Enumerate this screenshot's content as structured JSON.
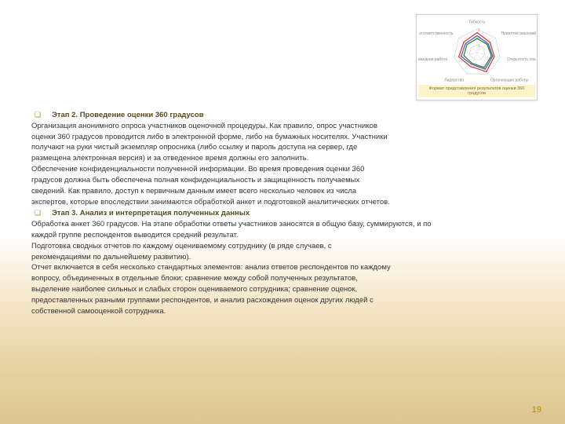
{
  "chart": {
    "caption": "Формат представления результатов оценки 360 градусов",
    "labels": {
      "top": "Гибкость",
      "topRight": "Принятие решений",
      "right": "Открытость опыту",
      "bottomRight": "Организация работы",
      "bottom": "Лидерство",
      "bottomLeft": "Командная работа",
      "left": "Аналитика и ответственность"
    },
    "rings": [
      1,
      2,
      3
    ],
    "series": [
      {
        "color": "#d93030",
        "points": [
          0.85,
          0.7,
          0.75,
          0.9,
          0.65,
          0.8,
          0.72
        ]
      },
      {
        "color": "#2a7a2a",
        "points": [
          0.6,
          0.55,
          0.62,
          0.7,
          0.5,
          0.58,
          0.55
        ]
      },
      {
        "color": "#3a5fb0",
        "points": [
          0.72,
          0.6,
          0.68,
          0.78,
          0.55,
          0.7,
          0.62
        ]
      }
    ]
  },
  "stage2": {
    "title": "Этап 2. Проведение оценки 360 градусов",
    "p1": "Организация анонимного опроса участников оценочной процедуры. Как правило, опрос участников",
    "p2": "оценки 360 градусов проводится либо в электронной форме, либо на бумажных носителях. Участники",
    "p3": "получают на руки чистый экземпляр опросника (либо ссылку и пароль доступа на сервер, где",
    "p4": "размещена электронная версия) и за отведенное время должны его заполнить.",
    "p5": "Обеспечение конфиденциальности полученной информации. Во время проведения оценки 360",
    "p6": "градусов должна быть обеспечена полная конфиденциальность и защищенность получаемых",
    "p7": "сведений. Как правило, доступ к первичным данным имеет всего несколько человек из числа",
    "p8": "экспертов, которые впоследствии занимаются обработкой анкет и подготовкой аналитических отчетов."
  },
  "stage3": {
    "title": "Этап 3. Анализ и интерпретация полученных данных",
    "p1": "Обработка анкет 360 градусов. На этапе обработки ответы участников заносятся в общую базу, суммируются, и по",
    "p2": "каждой группе респондентов выводится средний результат.",
    "p3": "Подготовка сводных отчетов по каждому оцениваемому сотруднику (в ряде случаев, с",
    "p4": "рекомендациями по дальнейшему развитию).",
    "p5": "Отчет включается в себя несколько стандартных элементов: анализ ответов респондентов по каждому",
    "p6": "вопросу, объединенных в отдельные блоки; сравнение между собой полученных результатов,",
    "p7": "выделение наиболее сильных и слабых сторон оцениваемого сотрудника; сравнение оценок,",
    "p8": "предоставленных разными группами респондентов, и анализ расхождения оценок других людей с",
    "p9": "собственной самооценкой сотрудника."
  },
  "pageNumber": "19",
  "bulletGlyph": "❑"
}
